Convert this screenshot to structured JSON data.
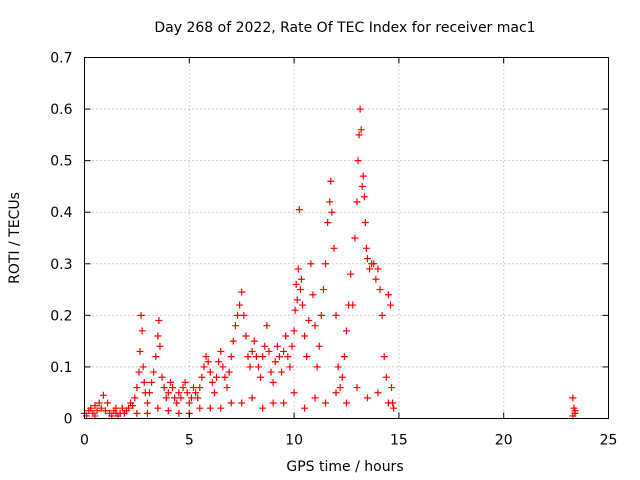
{
  "chart_data": {
    "type": "scatter",
    "title": "Day 268 of 2022, Rate Of TEC Index for receiver mac1",
    "xlabel": "GPS time / hours",
    "ylabel": "ROTI / TECUs",
    "xlim": [
      0,
      25
    ],
    "ylim": [
      0,
      0.7
    ],
    "xticks": [
      0,
      5,
      10,
      15,
      20,
      25
    ],
    "xtick_labels": [
      "0",
      "5",
      "10",
      "15",
      "20",
      "25"
    ],
    "yticks": [
      0,
      0.1,
      0.2,
      0.3,
      0.4,
      0.5,
      0.6,
      0.7
    ],
    "ytick_labels": [
      "0",
      "0.1",
      "0.2",
      "0.3",
      "0.4",
      "0.5",
      "0.6",
      "0.7"
    ],
    "grid": true,
    "marker": "+",
    "color": "#ff0000",
    "series": [
      {
        "name": "ROTI",
        "points": [
          [
            0.0,
            0.01
          ],
          [
            0.1,
            0.005
          ],
          [
            0.2,
            0.015
          ],
          [
            0.3,
            0.02
          ],
          [
            0.4,
            0.01
          ],
          [
            0.5,
            0.025
          ],
          [
            0.6,
            0.015
          ],
          [
            0.7,
            0.03
          ],
          [
            0.8,
            0.02
          ],
          [
            0.9,
            0.045
          ],
          [
            1.0,
            0.015
          ],
          [
            1.1,
            0.03
          ],
          [
            1.2,
            0.01
          ],
          [
            1.3,
            0.005
          ],
          [
            1.4,
            0.015
          ],
          [
            1.5,
            0.01
          ],
          [
            1.6,
            0.005
          ],
          [
            1.7,
            0.01
          ],
          [
            1.8,
            0.02
          ],
          [
            1.9,
            0.01
          ],
          [
            2.0,
            0.015
          ],
          [
            2.1,
            0.02
          ],
          [
            2.2,
            0.03
          ],
          [
            2.3,
            0.025
          ],
          [
            2.4,
            0.04
          ],
          [
            2.5,
            0.06
          ],
          [
            2.6,
            0.09
          ],
          [
            2.65,
            0.13
          ],
          [
            2.7,
            0.2
          ],
          [
            2.75,
            0.17
          ],
          [
            2.8,
            0.1
          ],
          [
            2.85,
            0.07
          ],
          [
            2.9,
            0.05
          ],
          [
            3.0,
            0.03
          ],
          [
            3.1,
            0.05
          ],
          [
            3.2,
            0.07
          ],
          [
            3.3,
            0.09
          ],
          [
            3.4,
            0.12
          ],
          [
            3.5,
            0.16
          ],
          [
            3.55,
            0.19
          ],
          [
            3.6,
            0.14
          ],
          [
            3.7,
            0.08
          ],
          [
            3.8,
            0.06
          ],
          [
            3.9,
            0.04
          ],
          [
            4.0,
            0.05
          ],
          [
            4.1,
            0.07
          ],
          [
            4.2,
            0.06
          ],
          [
            4.3,
            0.04
          ],
          [
            4.4,
            0.03
          ],
          [
            4.5,
            0.05
          ],
          [
            4.6,
            0.04
          ],
          [
            4.7,
            0.06
          ],
          [
            4.8,
            0.07
          ],
          [
            4.9,
            0.05
          ],
          [
            5.0,
            0.03
          ],
          [
            5.1,
            0.04
          ],
          [
            5.2,
            0.06
          ],
          [
            5.3,
            0.05
          ],
          [
            5.4,
            0.04
          ],
          [
            5.5,
            0.06
          ],
          [
            5.6,
            0.08
          ],
          [
            5.7,
            0.1
          ],
          [
            5.8,
            0.12
          ],
          [
            5.9,
            0.11
          ],
          [
            6.0,
            0.09
          ],
          [
            6.1,
            0.07
          ],
          [
            6.2,
            0.05
          ],
          [
            6.3,
            0.08
          ],
          [
            6.4,
            0.11
          ],
          [
            6.5,
            0.13
          ],
          [
            6.6,
            0.1
          ],
          [
            6.7,
            0.08
          ],
          [
            6.8,
            0.06
          ],
          [
            6.9,
            0.09
          ],
          [
            7.0,
            0.12
          ],
          [
            7.1,
            0.15
          ],
          [
            7.2,
            0.18
          ],
          [
            7.3,
            0.2
          ],
          [
            7.4,
            0.22
          ],
          [
            7.5,
            0.245
          ],
          [
            7.6,
            0.2
          ],
          [
            7.7,
            0.16
          ],
          [
            7.8,
            0.12
          ],
          [
            7.9,
            0.1
          ],
          [
            8.0,
            0.13
          ],
          [
            8.1,
            0.15
          ],
          [
            8.2,
            0.12
          ],
          [
            8.3,
            0.1
          ],
          [
            8.4,
            0.08
          ],
          [
            8.5,
            0.12
          ],
          [
            8.6,
            0.14
          ],
          [
            8.7,
            0.18
          ],
          [
            8.8,
            0.13
          ],
          [
            8.9,
            0.09
          ],
          [
            9.0,
            0.07
          ],
          [
            9.1,
            0.11
          ],
          [
            9.2,
            0.14
          ],
          [
            9.3,
            0.12
          ],
          [
            9.4,
            0.09
          ],
          [
            9.5,
            0.13
          ],
          [
            9.6,
            0.16
          ],
          [
            9.7,
            0.12
          ],
          [
            9.8,
            0.1
          ],
          [
            9.9,
            0.14
          ],
          [
            10.0,
            0.17
          ],
          [
            10.05,
            0.21
          ],
          [
            10.1,
            0.26
          ],
          [
            10.15,
            0.23
          ],
          [
            10.2,
            0.29
          ],
          [
            10.25,
            0.405
          ],
          [
            10.3,
            0.25
          ],
          [
            10.35,
            0.27
          ],
          [
            10.4,
            0.22
          ],
          [
            10.5,
            0.16
          ],
          [
            10.6,
            0.12
          ],
          [
            10.7,
            0.19
          ],
          [
            10.8,
            0.3
          ],
          [
            10.9,
            0.24
          ],
          [
            11.0,
            0.18
          ],
          [
            11.1,
            0.1
          ],
          [
            11.2,
            0.14
          ],
          [
            11.3,
            0.2
          ],
          [
            11.4,
            0.25
          ],
          [
            11.5,
            0.3
          ],
          [
            11.6,
            0.38
          ],
          [
            11.7,
            0.42
          ],
          [
            11.75,
            0.46
          ],
          [
            11.8,
            0.4
          ],
          [
            11.9,
            0.33
          ],
          [
            12.0,
            0.2
          ],
          [
            12.1,
            0.1
          ],
          [
            12.2,
            0.06
          ],
          [
            12.3,
            0.08
          ],
          [
            12.4,
            0.12
          ],
          [
            12.5,
            0.17
          ],
          [
            12.6,
            0.22
          ],
          [
            12.7,
            0.28
          ],
          [
            12.8,
            0.22
          ],
          [
            12.9,
            0.35
          ],
          [
            13.0,
            0.42
          ],
          [
            13.05,
            0.5
          ],
          [
            13.1,
            0.55
          ],
          [
            13.15,
            0.6
          ],
          [
            13.2,
            0.56
          ],
          [
            13.25,
            0.45
          ],
          [
            13.3,
            0.47
          ],
          [
            13.35,
            0.43
          ],
          [
            13.4,
            0.38
          ],
          [
            13.45,
            0.33
          ],
          [
            13.5,
            0.31
          ],
          [
            13.6,
            0.29
          ],
          [
            13.7,
            0.3
          ],
          [
            13.8,
            0.3
          ],
          [
            13.9,
            0.27
          ],
          [
            14.0,
            0.29
          ],
          [
            14.1,
            0.25
          ],
          [
            14.2,
            0.2
          ],
          [
            14.3,
            0.12
          ],
          [
            14.4,
            0.08
          ],
          [
            14.5,
            0.24
          ],
          [
            14.6,
            0.22
          ],
          [
            14.65,
            0.06
          ],
          [
            14.7,
            0.03
          ],
          [
            14.75,
            0.02
          ],
          [
            0.5,
            0.005
          ],
          [
            1.5,
            0.02
          ],
          [
            2.5,
            0.01
          ],
          [
            3.5,
            0.02
          ],
          [
            4.5,
            0.01
          ],
          [
            5.5,
            0.02
          ],
          [
            6.5,
            0.02
          ],
          [
            7.5,
            0.03
          ],
          [
            8.5,
            0.02
          ],
          [
            9.5,
            0.03
          ],
          [
            10.5,
            0.02
          ],
          [
            11.5,
            0.03
          ],
          [
            12.5,
            0.03
          ],
          [
            13.5,
            0.04
          ],
          [
            14.5,
            0.03
          ],
          [
            3.0,
            0.01
          ],
          [
            4.0,
            0.015
          ],
          [
            5.0,
            0.01
          ],
          [
            6.0,
            0.02
          ],
          [
            7.0,
            0.03
          ],
          [
            8.0,
            0.04
          ],
          [
            9.0,
            0.03
          ],
          [
            10.0,
            0.05
          ],
          [
            11.0,
            0.04
          ],
          [
            12.0,
            0.05
          ],
          [
            13.0,
            0.06
          ],
          [
            14.0,
            0.05
          ],
          [
            23.3,
            0.04
          ],
          [
            23.35,
            0.02
          ],
          [
            23.4,
            0.01
          ],
          [
            23.3,
            0.005
          ],
          [
            23.4,
            0.015
          ]
        ]
      }
    ]
  }
}
